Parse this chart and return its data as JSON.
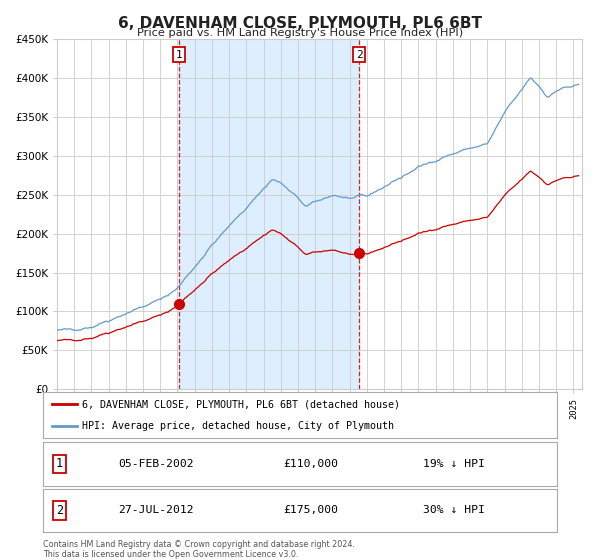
{
  "title": "6, DAVENHAM CLOSE, PLYMOUTH, PL6 6BT",
  "subtitle": "Price paid vs. HM Land Registry's House Price Index (HPI)",
  "legend_line1": "6, DAVENHAM CLOSE, PLYMOUTH, PL6 6BT (detached house)",
  "legend_line2": "HPI: Average price, detached house, City of Plymouth",
  "sale1_date": "05-FEB-2002",
  "sale1_price": "£110,000",
  "sale1_hpi": "19% ↓ HPI",
  "sale1_year": 2002.09,
  "sale1_value": 110000,
  "sale2_date": "27-JUL-2012",
  "sale2_price": "£175,000",
  "sale2_hpi": "30% ↓ HPI",
  "sale2_year": 2012.56,
  "sale2_value": 175000,
  "footer_line1": "Contains HM Land Registry data © Crown copyright and database right 2024.",
  "footer_line2": "This data is licensed under the Open Government Licence v3.0.",
  "red_line_color": "#cc0000",
  "blue_line_color": "#6699cc",
  "shade_color": "#ddeeff",
  "grid_color": "#cccccc",
  "background_color": "#ffffff",
  "ylim_min": 0,
  "ylim_max": 450000,
  "xlim_min": 1995.0,
  "xlim_max": 2025.5
}
